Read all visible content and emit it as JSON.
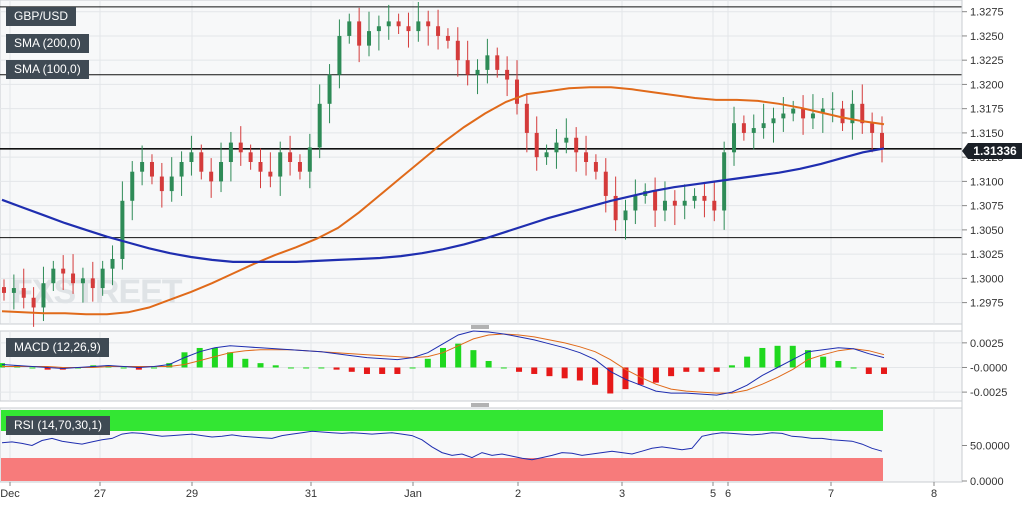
{
  "chart_data": {
    "type": "candlestick",
    "symbol": "GBP/USD",
    "watermark": "FXSTREET",
    "current_price_label": "1.31336",
    "main_panel": {
      "y_ticks": [
        "1.3275",
        "1.3250",
        "1.3225",
        "1.3200",
        "1.3175",
        "1.3150",
        "1.3125",
        "1.3100",
        "1.3075",
        "1.3050",
        "1.3025",
        "1.3000",
        "1.2975"
      ],
      "ylim": [
        1.2955,
        1.3285
      ],
      "horizontal_levels": [
        1.328,
        1.321,
        1.31336,
        1.3042
      ],
      "indicators": [
        {
          "name": "SMA (200,0)",
          "color": "#1f2eb0"
        },
        {
          "name": "SMA (100,0)",
          "color": "#e06a1a"
        }
      ],
      "sma200": [
        1.3081,
        1.3073,
        1.3065,
        1.3057,
        1.305,
        1.3043,
        1.3037,
        1.3031,
        1.3026,
        1.3022,
        1.3019,
        1.3017,
        1.3017,
        1.3017,
        1.3017,
        1.3018,
        1.3019,
        1.302,
        1.3021,
        1.3023,
        1.3026,
        1.303,
        1.3035,
        1.3041,
        1.3048,
        1.3055,
        1.3062,
        1.3068,
        1.3074,
        1.308,
        1.3085,
        1.309,
        1.3094,
        1.3097,
        1.31,
        1.3103,
        1.3106,
        1.3109,
        1.3113,
        1.3118,
        1.3124,
        1.313,
        1.3134
      ],
      "sma100": [
        1.2966,
        1.2965,
        1.2964,
        1.2964,
        1.2963,
        1.2963,
        1.2965,
        1.297,
        1.2978,
        1.2986,
        1.2995,
        1.3005,
        1.3015,
        1.3024,
        1.3032,
        1.3041,
        1.3052,
        1.3068,
        1.3086,
        1.3104,
        1.3122,
        1.314,
        1.3156,
        1.317,
        1.3182,
        1.319,
        1.3193,
        1.3196,
        1.3197,
        1.3197,
        1.3195,
        1.3192,
        1.3189,
        1.3186,
        1.3184,
        1.3184,
        1.3183,
        1.318,
        1.3176,
        1.3171,
        1.3166,
        1.3162,
        1.3159
      ],
      "closes": [
        1.2985,
        1.299,
        1.298,
        1.297,
        1.2995,
        1.301,
        1.3005,
        1.2995,
        1.3,
        1.299,
        1.301,
        1.302,
        1.308,
        1.311,
        1.312,
        1.3105,
        1.309,
        1.3105,
        1.312,
        1.313,
        1.311,
        1.31,
        1.312,
        1.314,
        1.313,
        1.312,
        1.311,
        1.3105,
        1.313,
        1.312,
        1.311,
        1.3135,
        1.318,
        1.321,
        1.325,
        1.3265,
        1.324,
        1.3255,
        1.326,
        1.3265,
        1.326,
        1.3255,
        1.3265,
        1.326,
        1.325,
        1.3245,
        1.3225,
        1.321,
        1.3215,
        1.323,
        1.3215,
        1.3205,
        1.318,
        1.315,
        1.3125,
        1.313,
        1.314,
        1.3145,
        1.313,
        1.312,
        1.311,
        1.3085,
        1.306,
        1.307,
        1.3085,
        1.309,
        1.307,
        1.308,
        1.3075,
        1.308,
        1.3085,
        1.308,
        1.307,
        1.313,
        1.316,
        1.315,
        1.3155,
        1.316,
        1.3165,
        1.317,
        1.3175,
        1.3165,
        1.317,
        1.3175,
        1.3175,
        1.316,
        1.318,
        1.316,
        1.315,
        1.31336
      ]
    },
    "macd_panel": {
      "label": "MACD (12,26,9)",
      "y_ticks": [
        "0.0025",
        "-0.0000",
        "-0.0025"
      ],
      "ylim": [
        -0.0032,
        0.0035
      ],
      "macd": [
        0.0003,
        0.0002,
        0.0001,
        0.0,
        -0.0001,
        0.0,
        0.0001,
        0.0002,
        0.0001,
        -0.0,
        0.0001,
        0.0003,
        0.001,
        0.0016,
        0.002,
        0.0022,
        0.0021,
        0.002,
        0.0019,
        0.0018,
        0.0017,
        0.0016,
        0.0014,
        0.0012,
        0.001,
        0.0009,
        0.0008,
        0.001,
        0.0015,
        0.0024,
        0.0033,
        0.0037,
        0.0036,
        0.0034,
        0.0031,
        0.0028,
        0.0024,
        0.002,
        0.0015,
        0.0008,
        -0.0004,
        -0.0012,
        -0.0018,
        -0.0024,
        -0.0026,
        -0.0026,
        -0.0027,
        -0.0028,
        -0.0025,
        -0.0018,
        -0.0008,
        0.0,
        0.0008,
        0.0016,
        0.0018,
        0.002,
        0.0019,
        0.0014,
        0.001
      ],
      "signal": [
        0.0001,
        0.0001,
        0.0001,
        0.0001,
        0.0,
        0.0,
        0.0,
        0.0001,
        0.0001,
        0.0001,
        0.0001,
        0.0001,
        0.0003,
        0.0007,
        0.0011,
        0.0015,
        0.0017,
        0.0018,
        0.0018,
        0.0018,
        0.0017,
        0.0016,
        0.0015,
        0.0014,
        0.0013,
        0.0012,
        0.0011,
        0.001,
        0.0011,
        0.0015,
        0.0022,
        0.0029,
        0.0033,
        0.0034,
        0.0033,
        0.0031,
        0.0028,
        0.0025,
        0.0021,
        0.0016,
        0.0008,
        -0.0002,
        -0.001,
        -0.0017,
        -0.0022,
        -0.0024,
        -0.0025,
        -0.0026,
        -0.0026,
        -0.0023,
        -0.0017,
        -0.001,
        -0.0002,
        0.0008,
        0.0013,
        0.0017,
        0.0019,
        0.0017,
        0.0013
      ],
      "colors": {
        "macd": "#1f2eb0",
        "signal": "#e06a1a",
        "hist_pos": "#1fd81f",
        "hist_neg": "#e61919"
      }
    },
    "rsi_panel": {
      "label": "RSI (14,70,30,1)",
      "y_ticks": [
        "50.0000",
        "0.0000"
      ],
      "ylim": [
        0,
        100
      ],
      "overbought": 70,
      "oversold": 30,
      "rsi": [
        54,
        55,
        53,
        50,
        57,
        60,
        56,
        54,
        52,
        55,
        58,
        60,
        66,
        68,
        67,
        65,
        63,
        64,
        65,
        66,
        64,
        62,
        63,
        65,
        63,
        62,
        61,
        60,
        64,
        66,
        68,
        70,
        69,
        68,
        67,
        68,
        67,
        66,
        67,
        68,
        66,
        64,
        58,
        48,
        40,
        36,
        38,
        33,
        40,
        36,
        38,
        35,
        32,
        30,
        33,
        36,
        40,
        39,
        36,
        38,
        40,
        42,
        40,
        38,
        42,
        46,
        48,
        46,
        44,
        46,
        63,
        66,
        68,
        67,
        66,
        65,
        66,
        68,
        67,
        63,
        62,
        60,
        60,
        58,
        57,
        56,
        52,
        46,
        42
      ]
    },
    "x_tick_labels": [
      "Dec",
      "27",
      "29",
      "31",
      "Jan",
      "2",
      "3",
      "5",
      "6",
      "7",
      "8"
    ]
  }
}
